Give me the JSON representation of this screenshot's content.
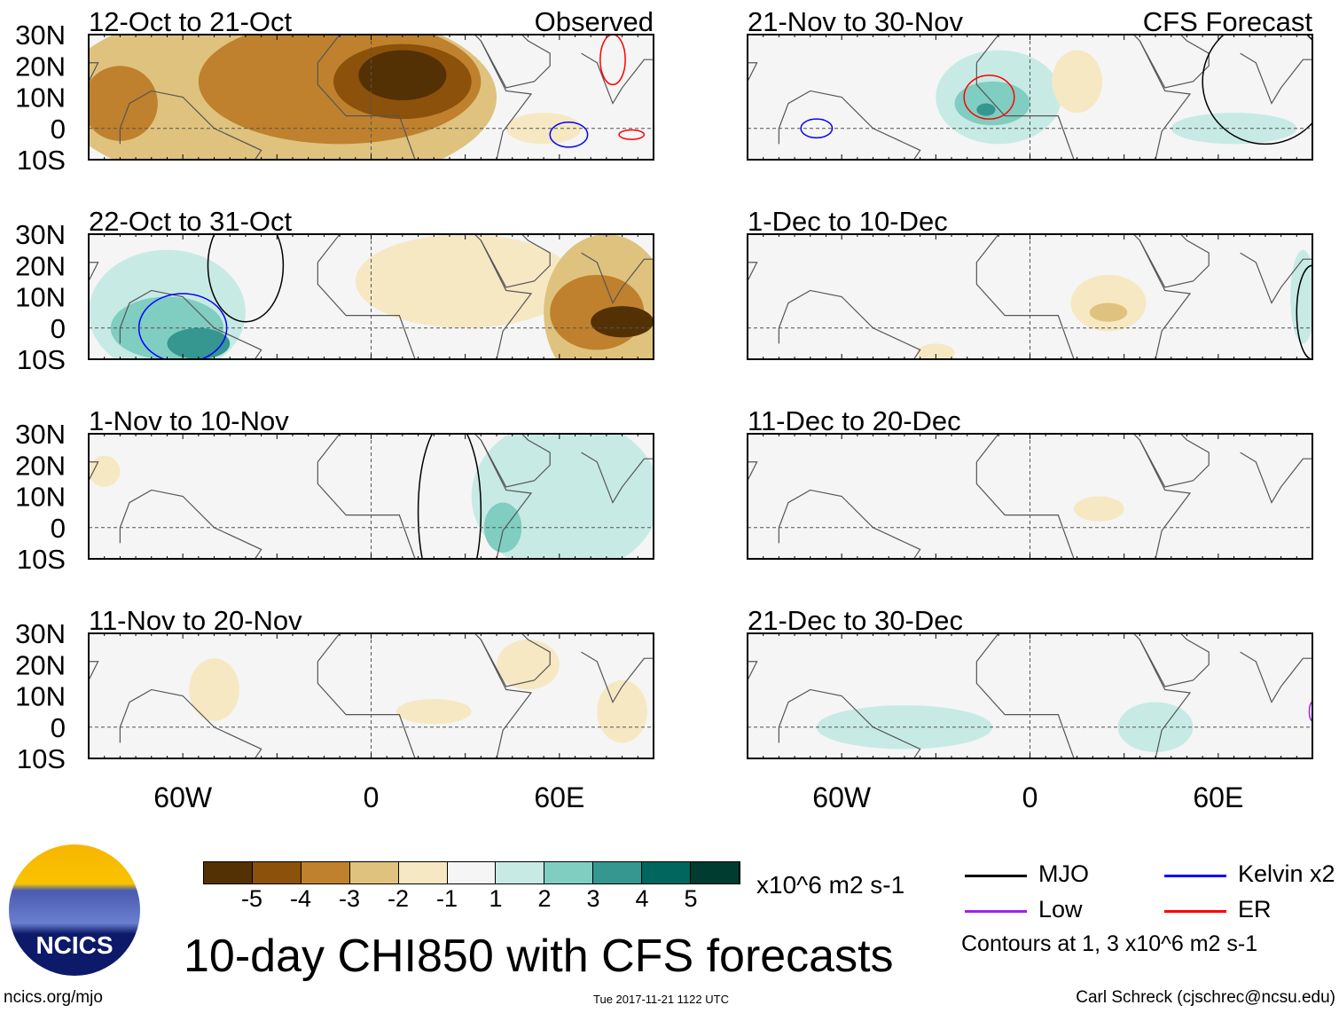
{
  "header": {
    "left": "Observed",
    "right": "CFS Forecast"
  },
  "lat_labels": [
    "30N",
    "20N",
    "10N",
    "0",
    "10S"
  ],
  "lon_labels": [
    "60W",
    "0",
    "60E"
  ],
  "colors": {
    "-5": "#543005",
    "-4": "#8c510a",
    "-3": "#bf812d",
    "-2": "#dfc27d",
    "-1": "#f6e8c3",
    "0": "#f5f5f5",
    "1": "#c7eae5",
    "2": "#80cdc1",
    "3": "#35978f",
    "4": "#01665e",
    "5": "#003c30",
    "MJO": "#000000",
    "Kelvin": "#0000ff",
    "Low": "#a020f0",
    "ER": "#ff0000",
    "coast": "#555555"
  },
  "panels": [
    {
      "title": "12-Oct to 21-Oct",
      "col": 0,
      "row": 0,
      "blobs": [
        [
          -30,
          10,
          70,
          30,
          -2
        ],
        [
          -10,
          15,
          45,
          20,
          -3
        ],
        [
          -80,
          8,
          12,
          12,
          -3
        ],
        [
          10,
          15,
          22,
          12,
          -4
        ],
        [
          10,
          17,
          14,
          8,
          -5
        ],
        [
          55,
          0,
          12,
          5,
          -1
        ]
      ],
      "contours": [
        [
          "Kelvin",
          63,
          -2,
          6,
          4
        ],
        [
          "ER",
          77,
          22,
          4,
          8
        ],
        [
          "ER",
          83,
          -2,
          4,
          1.5
        ]
      ]
    },
    {
      "title": "22-Oct to 31-Oct",
      "col": 0,
      "row": 1,
      "blobs": [
        [
          -65,
          5,
          25,
          20,
          1
        ],
        [
          -65,
          0,
          18,
          10,
          2
        ],
        [
          -55,
          -5,
          10,
          5,
          3
        ],
        [
          30,
          15,
          35,
          15,
          -1
        ],
        [
          75,
          5,
          20,
          25,
          -2
        ],
        [
          72,
          5,
          15,
          12,
          -3
        ],
        [
          80,
          2,
          10,
          5,
          -5
        ]
      ],
      "contours": [
        [
          "Kelvin",
          -60,
          0,
          14,
          11
        ],
        [
          "MJO",
          -40,
          20,
          12,
          18
        ]
      ]
    },
    {
      "title": "1-Nov to 10-Nov",
      "col": 0,
      "row": 2,
      "blobs": [
        [
          62,
          10,
          30,
          25,
          1
        ],
        [
          42,
          0,
          6,
          8,
          2
        ],
        [
          -85,
          18,
          5,
          5,
          -1
        ]
      ],
      "contours": [
        [
          "MJO",
          25,
          5,
          10,
          30
        ]
      ]
    },
    {
      "title": "11-Nov to 20-Nov",
      "col": 0,
      "row": 3,
      "blobs": [
        [
          -50,
          12,
          8,
          10,
          -1
        ],
        [
          20,
          5,
          12,
          4,
          -1
        ],
        [
          50,
          20,
          10,
          8,
          -1
        ],
        [
          80,
          5,
          8,
          10,
          -1
        ]
      ],
      "contours": []
    },
    {
      "title": "21-Nov to 30-Nov",
      "col": 1,
      "row": 0,
      "blobs": [
        [
          -10,
          10,
          20,
          15,
          1
        ],
        [
          -12,
          8,
          12,
          7,
          2
        ],
        [
          -14,
          6,
          3,
          2,
          3
        ],
        [
          65,
          0,
          20,
          5,
          1
        ],
        [
          15,
          15,
          8,
          10,
          -1
        ]
      ],
      "contours": [
        [
          "ER",
          -13,
          10,
          8,
          7
        ],
        [
          "Kelvin",
          -68,
          0,
          5,
          3
        ],
        [
          "MJO",
          75,
          15,
          20,
          20
        ]
      ]
    },
    {
      "title": "1-Dec to 10-Dec",
      "col": 1,
      "row": 1,
      "blobs": [
        [
          25,
          8,
          12,
          9,
          -1
        ],
        [
          25,
          5,
          6,
          3,
          -2
        ],
        [
          -30,
          -8,
          6,
          3,
          -1
        ],
        [
          87,
          10,
          4,
          15,
          1
        ]
      ],
      "contours": [
        [
          "MJO",
          90,
          5,
          5,
          15
        ]
      ]
    },
    {
      "title": "11-Dec to 20-Dec",
      "col": 1,
      "row": 2,
      "blobs": [
        [
          22,
          6,
          8,
          4,
          -1
        ]
      ],
      "contours": []
    },
    {
      "title": "21-Dec to 30-Dec",
      "col": 1,
      "row": 3,
      "blobs": [
        [
          -40,
          0,
          28,
          7,
          1
        ],
        [
          40,
          0,
          12,
          8,
          1
        ]
      ],
      "contours": [
        [
          "Low",
          90,
          5,
          1,
          3
        ]
      ]
    }
  ],
  "colorbar": {
    "labels": [
      "-5",
      "-4",
      "-3",
      "-2",
      "-1",
      "1",
      "2",
      "3",
      "4",
      "5"
    ],
    "units": "x10^6 m2 s-1",
    "levels": [
      "-5",
      "-4",
      "-3",
      "-2",
      "-1",
      "0",
      "1",
      "2",
      "3",
      "4",
      "5"
    ]
  },
  "legend": [
    {
      "name": "MJO"
    },
    {
      "name": "Kelvin x2"
    },
    {
      "name": "Low"
    },
    {
      "name": "ER"
    }
  ],
  "contour_note": "Contours at 1, 3 x10^6 m2 s-1",
  "title": "10-day CHI850 with CFS forecasts",
  "footer": {
    "left": "ncics.org/mjo",
    "center": "Tue 2017-11-21 1122 UTC",
    "right": "Carl Schreck (cjschrec@ncsu.edu)"
  },
  "logo": {
    "text": "NCICS"
  }
}
